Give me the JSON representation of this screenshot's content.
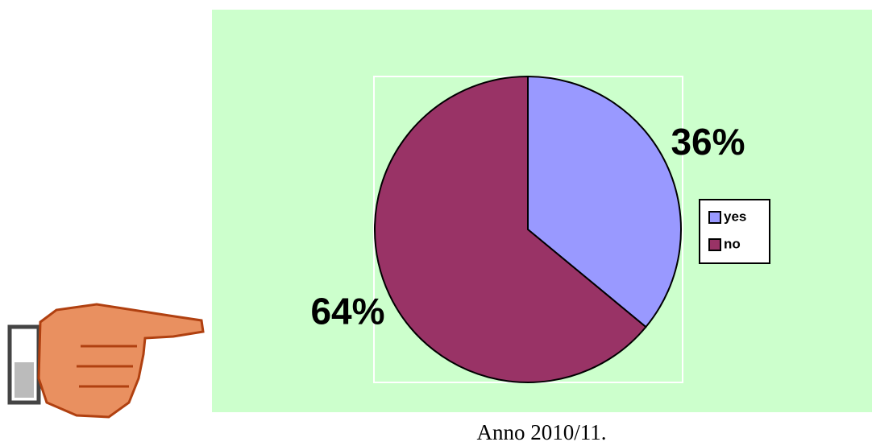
{
  "chart_data": {
    "type": "pie",
    "categories": [
      "yes",
      "no"
    ],
    "values": [
      36,
      64
    ],
    "value_labels": [
      "36%",
      "64%"
    ],
    "colors": [
      "#9999ff",
      "#993366"
    ],
    "legend": "right",
    "caption": "Anno 2010/11."
  }
}
